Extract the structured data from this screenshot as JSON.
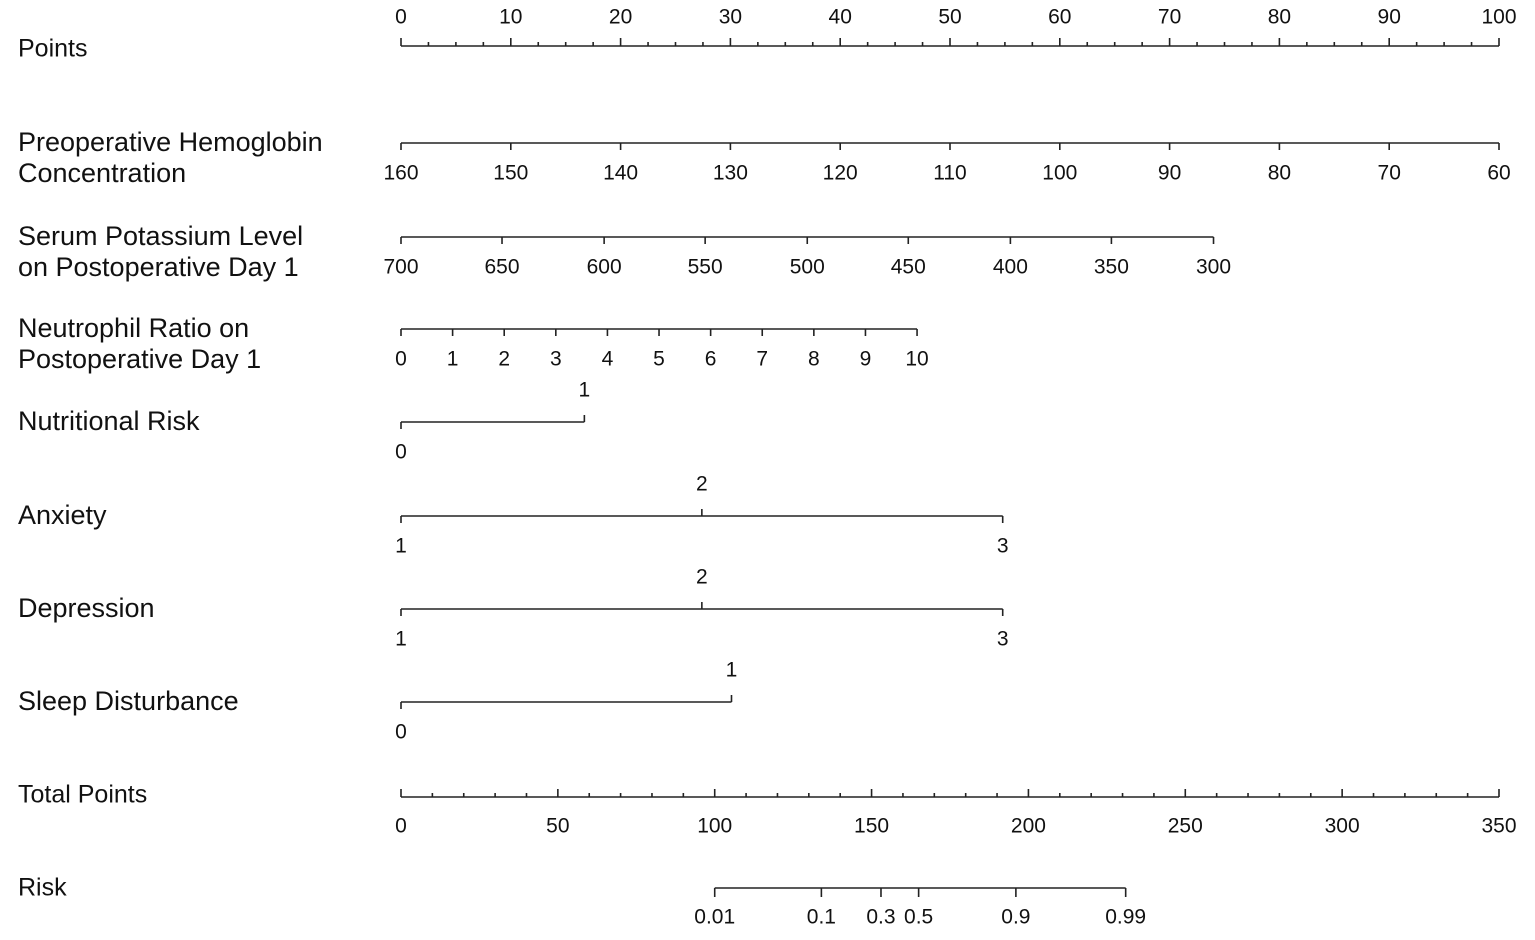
{
  "chart_data": {
    "type": "nomogram",
    "points_axis": {
      "label": "Points",
      "lim": [
        0,
        100
      ],
      "ticks": [
        0,
        10,
        20,
        30,
        40,
        50,
        60,
        70,
        80,
        90,
        100
      ],
      "minor_ticks": [
        2.5,
        5,
        7.5,
        12.5,
        15,
        17.5,
        22.5,
        25,
        27.5,
        32.5,
        35,
        37.5,
        42.5,
        45,
        47.5,
        52.5,
        55,
        57.5,
        62.5,
        65,
        67.5,
        72.5,
        75,
        77.5,
        82.5,
        85,
        87.5,
        92.5,
        95,
        97.5
      ]
    },
    "predictors": [
      {
        "label": [
          "Preoperative Hemoglobin",
          "Concentration"
        ],
        "ticks": [
          {
            "value": 160,
            "points": 0
          },
          {
            "value": 150,
            "points": 10
          },
          {
            "value": 140,
            "points": 20
          },
          {
            "value": 130,
            "points": 30
          },
          {
            "value": 120,
            "points": 40
          },
          {
            "value": 110,
            "points": 50
          },
          {
            "value": 100,
            "points": 60
          },
          {
            "value": 90,
            "points": 70
          },
          {
            "value": 80,
            "points": 80
          },
          {
            "value": 70,
            "points": 90
          },
          {
            "value": 60,
            "points": 100
          }
        ]
      },
      {
        "label": [
          "Serum Potassium Level",
          "on Postoperative Day 1"
        ],
        "ticks": [
          {
            "value": 700,
            "points": 0
          },
          {
            "value": 650,
            "points": 9.2
          },
          {
            "value": 600,
            "points": 18.5
          },
          {
            "value": 550,
            "points": 27.7
          },
          {
            "value": 500,
            "points": 37
          },
          {
            "value": 450,
            "points": 46.2
          },
          {
            "value": 400,
            "points": 55.5
          },
          {
            "value": 350,
            "points": 64.7
          },
          {
            "value": 300,
            "points": 74
          }
        ]
      },
      {
        "label": [
          "Neutrophil Ratio on",
          "Postoperative Day 1"
        ],
        "ticks": [
          {
            "value": 0,
            "points": 0
          },
          {
            "value": 1,
            "points": 4.7
          },
          {
            "value": 2,
            "points": 9.4
          },
          {
            "value": 3,
            "points": 14.1
          },
          {
            "value": 4,
            "points": 18.8
          },
          {
            "value": 5,
            "points": 23.5
          },
          {
            "value": 6,
            "points": 28.2
          },
          {
            "value": 7,
            "points": 32.9
          },
          {
            "value": 8,
            "points": 37.6
          },
          {
            "value": 9,
            "points": 42.3
          },
          {
            "value": 10,
            "points": 47
          }
        ]
      },
      {
        "label": [
          "Nutritional Risk"
        ],
        "ticks": [
          {
            "value": 0,
            "points": 0
          },
          {
            "value": 1,
            "points": 16.7
          }
        ]
      },
      {
        "label": [
          "Anxiety"
        ],
        "ticks": [
          {
            "value": 1,
            "points": 0
          },
          {
            "value": 2,
            "points": 27.4
          },
          {
            "value": 3,
            "points": 54.8
          }
        ]
      },
      {
        "label": [
          "Depression"
        ],
        "ticks": [
          {
            "value": 1,
            "points": 0
          },
          {
            "value": 2,
            "points": 27.4
          },
          {
            "value": 3,
            "points": 54.8
          }
        ]
      },
      {
        "label": [
          "Sleep Disturbance"
        ],
        "ticks": [
          {
            "value": 0,
            "points": 0
          },
          {
            "value": 1,
            "points": 30.1
          }
        ]
      }
    ],
    "total_points_axis": {
      "label": "Total Points",
      "lim": [
        0,
        350
      ],
      "ticks": [
        0,
        50,
        100,
        150,
        200,
        250,
        300,
        350
      ],
      "minor_ticks": [
        10,
        20,
        30,
        40,
        60,
        70,
        80,
        90,
        110,
        120,
        130,
        140,
        160,
        170,
        180,
        190,
        210,
        220,
        230,
        240,
        260,
        270,
        280,
        290,
        310,
        320,
        330,
        340
      ]
    },
    "risk_axis": {
      "label": "Risk",
      "ticks": [
        {
          "value": 0.01,
          "total_points": 100
        },
        {
          "value": 0.1,
          "total_points": 134
        },
        {
          "value": 0.3,
          "total_points": 153
        },
        {
          "value": 0.5,
          "total_points": 165
        },
        {
          "value": 0.9,
          "total_points": 196
        },
        {
          "value": 0.99,
          "total_points": 231
        }
      ]
    }
  }
}
